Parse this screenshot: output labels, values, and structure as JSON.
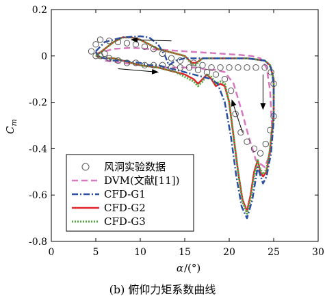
{
  "caption": "(b) 俯仰力矩系数曲线",
  "chart_data": {
    "type": "line",
    "xlabel_symbol": "α",
    "xlabel_unit": "/(°)",
    "ylabel_symbol": "C",
    "ylabel_subscript": "m",
    "xlim": [
      0,
      30
    ],
    "ylim": [
      -0.8,
      0.2
    ],
    "xticks": [
      "0",
      "5",
      "10",
      "15",
      "20",
      "25",
      "30"
    ],
    "yticks": [
      "0.2",
      "0",
      "-0.2",
      "-0.4",
      "-0.6",
      "-0.8"
    ],
    "grid": false,
    "legend_position": "bottom-left",
    "colors": {
      "experiment": "#555555",
      "dvm": "#d677bf",
      "cfd_g1": "#2a4fa3",
      "cfd_g2": "#e0242a",
      "cfd_g3": "#4cad3b"
    },
    "series": [
      {
        "name": "风洞实验数据",
        "style": "markers",
        "x": [
          4.5,
          5.0,
          5.5,
          6.5,
          7.5,
          8.5,
          9.5,
          10.5,
          11.5,
          12.5,
          13.5,
          14.5,
          16.0,
          17.0,
          18.0,
          19.0,
          20.0,
          21.0,
          22.0,
          23.0,
          24.0,
          24.7,
          25.0,
          25.0,
          24.6,
          24.1,
          23.5,
          22.8,
          22.0,
          21.3,
          20.7,
          20.2,
          19.5,
          18.5,
          17.5,
          16.5,
          15.5,
          14.5,
          13.5,
          12.5,
          11.5,
          10.5,
          9.5,
          8.5,
          7.5,
          6.5,
          5.5,
          5.0,
          6.0
        ],
        "y": [
          0.02,
          0.05,
          0.07,
          0.065,
          0.06,
          0.055,
          0.05,
          0.04,
          0.03,
          0.01,
          -0.01,
          -0.02,
          -0.03,
          -0.04,
          -0.05,
          -0.05,
          -0.05,
          -0.05,
          -0.05,
          -0.05,
          -0.05,
          -0.07,
          -0.12,
          -0.26,
          -0.32,
          -0.38,
          -0.42,
          -0.4,
          -0.37,
          -0.33,
          -0.25,
          -0.15,
          -0.1,
          -0.08,
          -0.07,
          -0.06,
          -0.05,
          -0.05,
          -0.05,
          -0.04,
          -0.04,
          -0.04,
          -0.03,
          -0.03,
          -0.02,
          -0.01,
          0.0,
          0.0,
          0.01
        ]
      },
      {
        "name": "DVM(文献[11])",
        "style": "dashed",
        "x": [
          5,
          7,
          9,
          11,
          13,
          15,
          17,
          19,
          21,
          22.5,
          23.5,
          24.2,
          24.6,
          24.8,
          24.6,
          24.0,
          23.0,
          22.2,
          21.5,
          20.5,
          19.5,
          18.5,
          17.5,
          16.5,
          15.5,
          14,
          12,
          10,
          8,
          6,
          5
        ],
        "y": [
          0.01,
          0.03,
          0.035,
          0.03,
          0.025,
          0.02,
          0.015,
          0.01,
          0.005,
          0.0,
          -0.01,
          -0.05,
          -0.15,
          -0.3,
          -0.42,
          -0.48,
          -0.45,
          -0.35,
          -0.25,
          -0.12,
          -0.07,
          -0.06,
          -0.06,
          -0.05,
          -0.05,
          -0.05,
          -0.05,
          -0.04,
          -0.03,
          -0.02,
          0.01
        ]
      },
      {
        "name": "CFD-G1",
        "style": "dashdot",
        "x": [
          5,
          6,
          8,
          10,
          11,
          12,
          12.8,
          13.2,
          14,
          15,
          16,
          17,
          18,
          19,
          20,
          21,
          22,
          23,
          24,
          24.7,
          25.0,
          25.0,
          24.7,
          24.2,
          23.8,
          23.2,
          22.6,
          22.0,
          21.4,
          20.8,
          20.2,
          19.5,
          18.7,
          18.0,
          17.0,
          16.0,
          15.0,
          14.0,
          13.0,
          12.0,
          11.0,
          10.0,
          9.0,
          8.0,
          7.0,
          6.0,
          5.2,
          5.0
        ],
        "y": [
          0.02,
          0.06,
          0.08,
          0.085,
          0.08,
          0.05,
          0.0,
          -0.04,
          -0.02,
          -0.01,
          -0.01,
          -0.01,
          -0.01,
          -0.01,
          -0.01,
          -0.01,
          -0.01,
          -0.015,
          -0.02,
          -0.05,
          -0.12,
          -0.28,
          -0.42,
          -0.52,
          -0.55,
          -0.48,
          -0.62,
          -0.7,
          -0.65,
          -0.52,
          -0.35,
          -0.2,
          -0.12,
          -0.1,
          -0.09,
          -0.08,
          -0.07,
          -0.06,
          -0.05,
          -0.04,
          -0.04,
          -0.03,
          -0.025,
          -0.02,
          -0.02,
          -0.01,
          0.0,
          0.02
        ]
      },
      {
        "name": "CFD-G2",
        "style": "solid",
        "x": [
          5,
          6,
          7,
          8,
          9,
          10,
          11,
          12,
          13,
          14,
          15,
          15.8,
          16.3,
          17,
          18,
          19,
          20,
          21,
          22,
          23,
          24,
          24.6,
          25.0,
          25.0,
          24.6,
          24.2,
          23.8,
          23.5,
          23.2,
          22.8,
          22.4,
          22.0,
          21.5,
          21.0,
          20.5,
          20.0,
          19.5,
          19.0,
          18.5,
          18.0,
          17.5,
          17.0,
          16.5,
          16.0,
          15.0,
          14.0,
          12.0,
          10.0,
          9.0,
          8.0,
          7.0,
          6.0,
          5.0
        ],
        "y": [
          0.0,
          0.03,
          0.06,
          0.08,
          0.08,
          0.07,
          0.05,
          0.03,
          0.02,
          0.01,
          0.0,
          -0.03,
          -0.03,
          -0.01,
          -0.01,
          -0.01,
          -0.01,
          -0.01,
          -0.01,
          -0.015,
          -0.02,
          -0.04,
          -0.1,
          -0.25,
          -0.4,
          -0.5,
          -0.52,
          -0.5,
          -0.45,
          -0.5,
          -0.6,
          -0.67,
          -0.62,
          -0.5,
          -0.35,
          -0.2,
          -0.13,
          -0.12,
          -0.13,
          -0.1,
          -0.08,
          -0.1,
          -0.12,
          -0.1,
          -0.08,
          -0.07,
          -0.05,
          -0.04,
          -0.03,
          -0.02,
          -0.01,
          -0.01,
          0.0
        ]
      },
      {
        "name": "CFD-G3",
        "style": "dotted",
        "x": [
          5,
          6,
          7,
          8,
          9,
          10,
          11,
          12,
          13,
          14,
          15,
          15.7,
          16.2,
          17,
          18,
          19,
          20,
          21,
          22,
          23,
          24,
          24.6,
          25.0,
          25.0,
          24.6,
          24.2,
          23.8,
          23.5,
          23.2,
          22.8,
          22.4,
          22.0,
          21.5,
          21.0,
          20.5,
          20.0,
          19.5,
          19.0,
          18.5,
          18.0,
          17.5,
          17.0,
          16.5,
          16.0,
          15.0,
          14.0,
          12.0,
          10.0,
          9.0,
          8.0,
          7.0,
          6.0,
          5.0
        ],
        "y": [
          0.0,
          0.03,
          0.06,
          0.08,
          0.08,
          0.07,
          0.05,
          0.03,
          0.02,
          0.01,
          0.0,
          -0.03,
          -0.04,
          -0.01,
          -0.01,
          -0.01,
          -0.01,
          -0.01,
          -0.01,
          -0.015,
          -0.02,
          -0.04,
          -0.1,
          -0.25,
          -0.4,
          -0.49,
          -0.51,
          -0.49,
          -0.45,
          -0.52,
          -0.62,
          -0.68,
          -0.63,
          -0.5,
          -0.35,
          -0.2,
          -0.12,
          -0.11,
          -0.12,
          -0.09,
          -0.08,
          -0.11,
          -0.13,
          -0.11,
          -0.09,
          -0.07,
          -0.05,
          -0.04,
          -0.03,
          -0.02,
          -0.01,
          -0.01,
          0.0
        ]
      }
    ],
    "arrows": [
      {
        "from": [
          13.5,
          0.065
        ],
        "to": [
          9,
          0.07
        ]
      },
      {
        "from": [
          7.5,
          -0.055
        ],
        "to": [
          12,
          -0.07
        ]
      },
      {
        "from": [
          21.5,
          -0.33
        ],
        "to": [
          20.3,
          -0.19
        ]
      },
      {
        "from": [
          23.8,
          -0.08
        ],
        "to": [
          23.8,
          -0.23
        ]
      }
    ]
  }
}
